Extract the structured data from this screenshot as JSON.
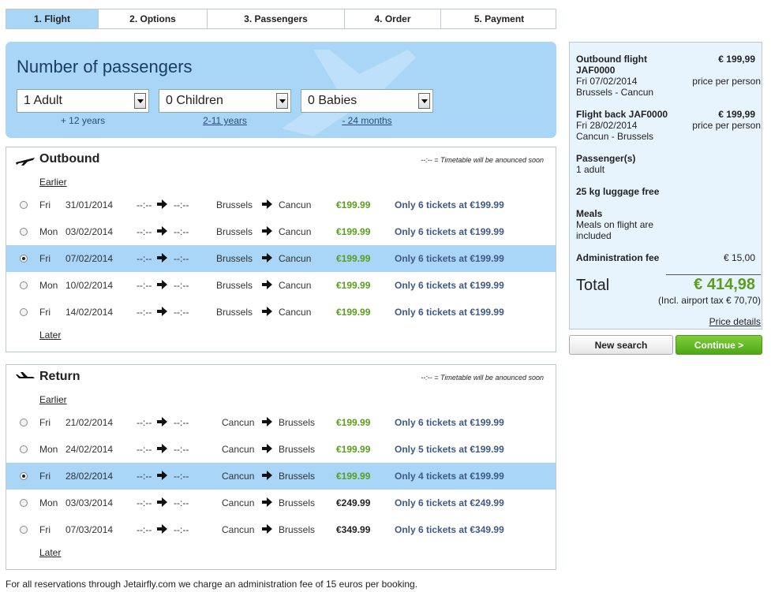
{
  "steps": [
    "1. Flight",
    "2. Options",
    "3. Passengers",
    "4. Order",
    "5. Payment"
  ],
  "active_step": 0,
  "passengers": {
    "title": "Number of passengers",
    "selects": [
      {
        "value": "1 Adult",
        "hint": "+ 12 years"
      },
      {
        "value": "0 Children",
        "hint": "2-11 years"
      },
      {
        "value": "0 Babies",
        "hint": "- 24 months"
      }
    ]
  },
  "sections": [
    {
      "title": "Outbound",
      "note_symbol": "--:--",
      "note": "= Timetable will be anounced soon",
      "earlier": "Earlier",
      "later": "Later",
      "rows": [
        {
          "day": "Fri",
          "date": "31/01/2014",
          "dep": "--:--",
          "arr": "--:--",
          "from": "Brussels",
          "to": "Cancun",
          "price": "€199.99",
          "availability": "Only 6 tickets at €199.99",
          "selected": false,
          "price_color": "#5a9e1e"
        },
        {
          "day": "Mon",
          "date": "03/02/2014",
          "dep": "--:--",
          "arr": "--:--",
          "from": "Brussels",
          "to": "Cancun",
          "price": "€199.99",
          "availability": "Only 6 tickets at €199.99",
          "selected": false,
          "price_color": "#5a9e1e"
        },
        {
          "day": "Fri",
          "date": "07/02/2014",
          "dep": "--:--",
          "arr": "--:--",
          "from": "Brussels",
          "to": "Cancun",
          "price": "€199.99",
          "availability": "Only 6 tickets at €199.99",
          "selected": true,
          "price_color": "#5a9e1e"
        },
        {
          "day": "Mon",
          "date": "10/02/2014",
          "dep": "--:--",
          "arr": "--:--",
          "from": "Brussels",
          "to": "Cancun",
          "price": "€199.99",
          "availability": "Only 6 tickets at €199.99",
          "selected": false,
          "price_color": "#5a9e1e"
        },
        {
          "day": "Fri",
          "date": "14/02/2014",
          "dep": "--:--",
          "arr": "--:--",
          "from": "Brussels",
          "to": "Cancun",
          "price": "€199.99",
          "availability": "Only 6 tickets at €199.99",
          "selected": false,
          "price_color": "#5a9e1e"
        }
      ]
    },
    {
      "title": "Return",
      "note_symbol": "--:--",
      "note": "= Timetable will be anounced soon",
      "earlier": "Earlier",
      "later": "Later",
      "rows": [
        {
          "day": "Fri",
          "date": "21/02/2014",
          "dep": "--:--",
          "arr": "--:--",
          "from": "Cancun",
          "to": "Brussels",
          "price": "€199.99",
          "availability": "Only 6 tickets at €199.99",
          "selected": false,
          "price_color": "#5a9e1e"
        },
        {
          "day": "Mon",
          "date": "24/02/2014",
          "dep": "--:--",
          "arr": "--:--",
          "from": "Cancun",
          "to": "Brussels",
          "price": "€199.99",
          "availability": "Only 5 tickets at €199.99",
          "selected": false,
          "price_color": "#5a9e1e"
        },
        {
          "day": "Fri",
          "date": "28/02/2014",
          "dep": "--:--",
          "arr": "--:--",
          "from": "Cancun",
          "to": "Brussels",
          "price": "€199.99",
          "availability": "Only 4 tickets at €199.99",
          "selected": true,
          "price_color": "#5a9e1e"
        },
        {
          "day": "Mon",
          "date": "03/03/2014",
          "dep": "--:--",
          "arr": "--:--",
          "from": "Cancun",
          "to": "Brussels",
          "price": "€249.99",
          "availability": "Only 6 tickets at €249.99",
          "selected": false,
          "price_color": "#222222"
        },
        {
          "day": "Fri",
          "date": "07/03/2014",
          "dep": "--:--",
          "arr": "--:--",
          "from": "Cancun",
          "to": "Brussels",
          "price": "€349.99",
          "availability": "Only 6 tickets at €349.99",
          "selected": false,
          "price_color": "#222222"
        }
      ]
    }
  ],
  "summary": {
    "outbound": {
      "label": "Outbound flight JAF0000",
      "price": "€ 199,99",
      "date": "Fri 07/02/2014",
      "per": "price per person",
      "route": "Brussels - Cancun"
    },
    "return": {
      "label": "Flight back JAF0000",
      "price": "€ 199,99",
      "date": "Fri 28/02/2014",
      "per": "price per person",
      "route": "Cancun - Brussels"
    },
    "passengers_label": "Passenger(s)",
    "passengers_value": "1 adult",
    "luggage": "25 kg luggage free",
    "meals_label": "Meals",
    "meals_value": "Meals on flight are included",
    "fee_label": "Administration fee",
    "fee_value": "€ 15,00",
    "total_label": "Total",
    "total_value": "€ 414,98",
    "tax": "(Incl. airport tax € 70,70)",
    "details_link": "Price details"
  },
  "buttons": {
    "new_search": "New search",
    "continue": "Continue >"
  },
  "footer": "For all reservations through Jetairfly.com we charge an administration fee of 15 euros per booking."
}
